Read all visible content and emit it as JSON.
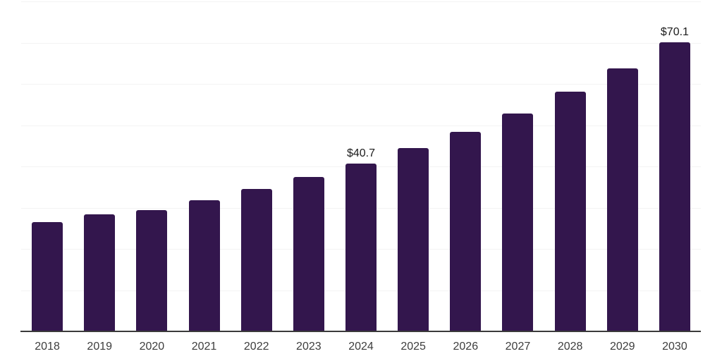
{
  "chart_data": {
    "type": "bar",
    "title": "",
    "xlabel": "",
    "ylabel": "",
    "categories": [
      "2018",
      "2019",
      "2020",
      "2021",
      "2022",
      "2023",
      "2024",
      "2025",
      "2026",
      "2027",
      "2028",
      "2029",
      "2030"
    ],
    "values": [
      26.5,
      28.4,
      29.4,
      31.8,
      34.5,
      37.4,
      40.7,
      44.4,
      48.3,
      52.9,
      58.1,
      63.7,
      70.1
    ],
    "data_labels": [
      null,
      null,
      null,
      null,
      null,
      null,
      "$40.7",
      null,
      null,
      null,
      null,
      null,
      "$70.1"
    ],
    "ylim": [
      0,
      80
    ],
    "gridline_step": 10,
    "grid": "horizontal",
    "legend_position": "none",
    "y_tick_labels_visible": false,
    "colors": {
      "bar": "#33164D",
      "gridline": "#f3f3f3",
      "axis_line": "#3b3b3b",
      "x_tick_label": "#3d3d3d",
      "data_label": "#1c1c1c",
      "background": "#ffffff"
    }
  }
}
